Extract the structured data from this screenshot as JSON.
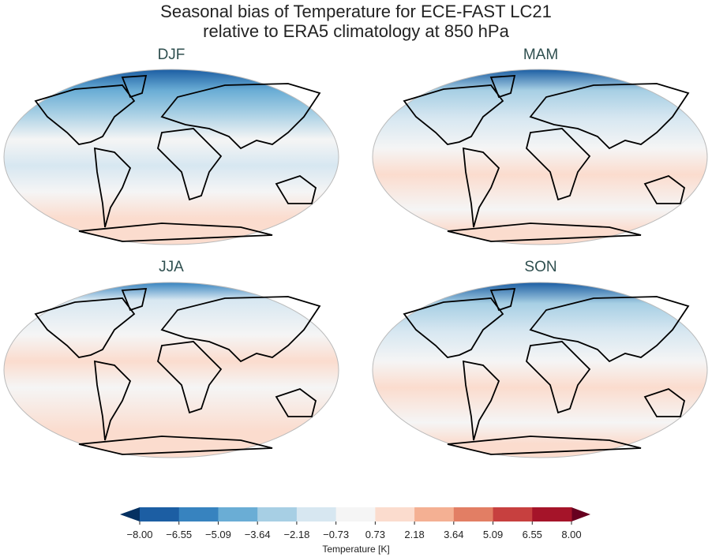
{
  "title_line1": "Seasonal bias of Temperature for ECE-FAST LC21",
  "title_line2": "relative to ERA5 climatology at 850 hPa",
  "panels": [
    {
      "title": "DJF",
      "pattern": "strong-cold-north"
    },
    {
      "title": "MAM",
      "pattern": "cold-north"
    },
    {
      "title": "JJA",
      "pattern": "mild-cold-north"
    },
    {
      "title": "SON",
      "pattern": "cold-north"
    }
  ],
  "colorbar": {
    "label": "Temperature [K]",
    "ticks": [
      "−8.00",
      "−6.55",
      "−5.09",
      "−3.64",
      "−2.18",
      "−0.73",
      "0.73",
      "2.18",
      "3.64",
      "5.09",
      "6.55",
      "8.00"
    ],
    "colors": [
      "#1c5ea3",
      "#3783bf",
      "#6aadd5",
      "#a7cfe4",
      "#d7e7f1",
      "#f5f5f5",
      "#fbdcce",
      "#f4b093",
      "#e27e64",
      "#c7403f",
      "#a51429"
    ],
    "extend_low": "#053061",
    "extend_high": "#67001f"
  }
}
